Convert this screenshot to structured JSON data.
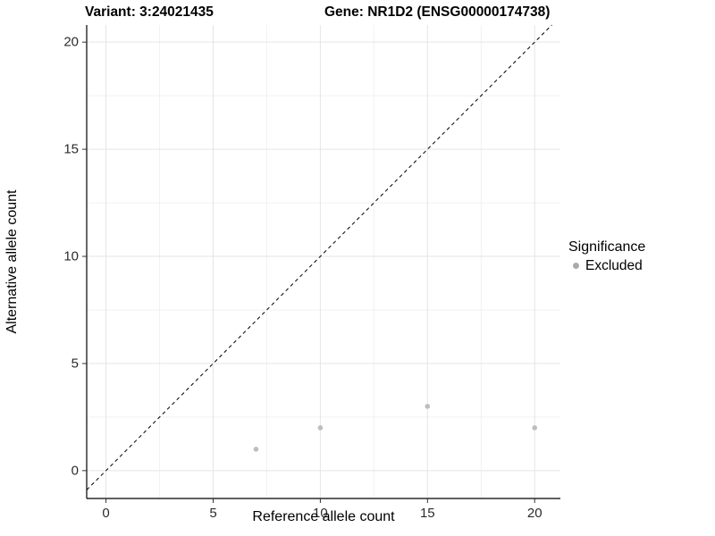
{
  "titles": {
    "variant": "Variant: 3:24021435",
    "gene": "Gene: NR1D2 (ENSG00000174738)"
  },
  "chart_data": {
    "type": "scatter",
    "title_left": "Variant: 3:24021435",
    "title_right": "Gene: NR1D2 (ENSG00000174738)",
    "xlabel": "Reference allele count",
    "ylabel": "Alternative allele count",
    "x_ticks": [
      0,
      5,
      10,
      15,
      20
    ],
    "y_ticks": [
      0,
      5,
      10,
      15,
      20
    ],
    "x_minor_ticks": [
      2.5,
      7.5,
      12.5,
      17.5
    ],
    "y_minor_ticks": [
      2.5,
      7.5,
      12.5,
      17.5
    ],
    "x_domain": [
      -0.9,
      21.2
    ],
    "y_domain": [
      -1.3,
      20.8
    ],
    "grid": true,
    "identity_line": {
      "slope": 1,
      "intercept": 0,
      "style": "dashed",
      "color": "#000000"
    },
    "series": [
      {
        "name": "Excluded",
        "color": "#bebebe",
        "points": [
          {
            "x": 7,
            "y": 1
          },
          {
            "x": 10,
            "y": 2
          },
          {
            "x": 15,
            "y": 3
          },
          {
            "x": 20,
            "y": 2
          }
        ]
      }
    ],
    "legend": {
      "title": "Significance",
      "position": "right",
      "items": [
        {
          "label": "Excluded",
          "color": "#aaaaaa"
        }
      ]
    },
    "colors": {
      "background": "#ffffff",
      "axis_line": "#000000",
      "tick_mark": "#333333",
      "grid_major": "#e5e5e5",
      "grid_minor": "#f1f1f1",
      "point": "#bebebe"
    }
  }
}
